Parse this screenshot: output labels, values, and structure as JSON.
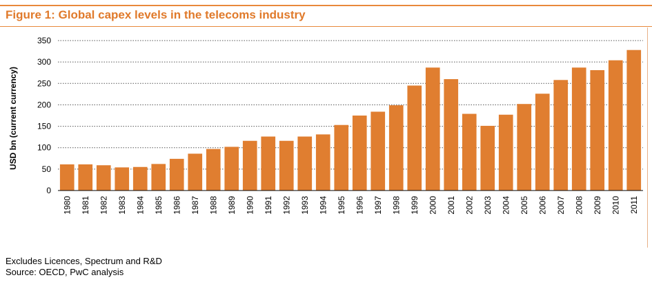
{
  "chart_data": {
    "type": "bar",
    "title": "Figure 1: Global capex levels in the telecoms industry",
    "xlabel": "",
    "ylabel": "USD bn (current currency)",
    "ylim": [
      0,
      350
    ],
    "yticks": [
      0,
      50,
      100,
      150,
      200,
      250,
      300,
      350
    ],
    "grid": true,
    "categories": [
      "1980",
      "1981",
      "1982",
      "1983",
      "1984",
      "1985",
      "1986",
      "1987",
      "1988",
      "1989",
      "1990",
      "1991",
      "1992",
      "1993",
      "1994",
      "1995",
      "1996",
      "1997",
      "1998",
      "1999",
      "2000",
      "2001",
      "2002",
      "2003",
      "2004",
      "2005",
      "2006",
      "2007",
      "2008",
      "2009",
      "2010",
      "2011"
    ],
    "values": [
      61,
      61,
      59,
      54,
      55,
      62,
      74,
      86,
      97,
      102,
      116,
      126,
      116,
      126,
      131,
      153,
      175,
      184,
      199,
      245,
      287,
      260,
      179,
      151,
      177,
      202,
      226,
      258,
      287,
      281,
      304,
      328
    ],
    "bar_color": "#e07e30",
    "grid_color": "#555555"
  },
  "notes": {
    "line1": "Excludes Licences, Spectrum and R&D",
    "line2": "Source: OECD, PwC analysis"
  }
}
